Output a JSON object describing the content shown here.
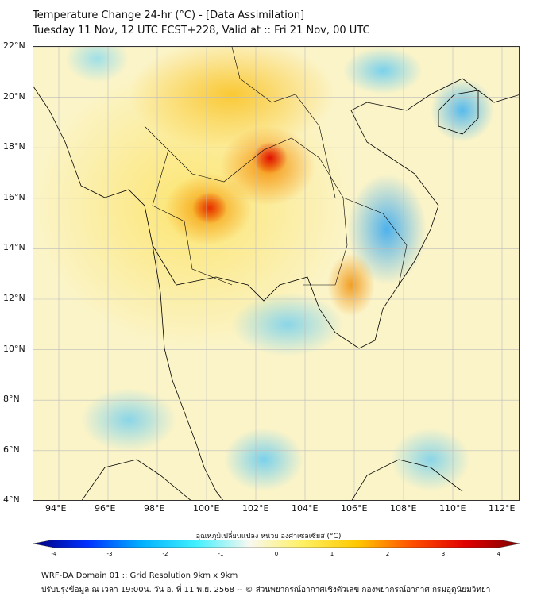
{
  "title": {
    "line1": "Temperature Change 24-hr (°C) - [Data Assimilation]",
    "line2": "Tuesday 11 Nov, 12 UTC FCST+228, Valid at :: Fri 21 Nov, 00 UTC"
  },
  "map": {
    "lat_labels": [
      "22°N",
      "20°N",
      "18°N",
      "16°N",
      "14°N",
      "12°N",
      "10°N",
      "8°N",
      "6°N",
      "4°N"
    ],
    "lon_labels": [
      "94°E",
      "96°E",
      "98°E",
      "100°E",
      "102°E",
      "104°E",
      "106°E",
      "108°E",
      "110°E",
      "112°E"
    ]
  },
  "colorbar": {
    "title": "อุณหภูมิเปลี่ยนแปลง หน่วย องศาเซลเซียส (°C)",
    "ticks": [
      "-4",
      "-3",
      "-2",
      "-1",
      "0",
      "1",
      "2",
      "3",
      "4"
    ],
    "colors": [
      "#00007f",
      "#0030ff",
      "#00b0ff",
      "#40f0ff",
      "#f8f8f0",
      "#fff060",
      "#ffc800",
      "#ff5000",
      "#e00000",
      "#7f0000"
    ]
  },
  "footer": {
    "line1": "WRF-DA Domain 01 :: Grid Resolution 9km x 9km",
    "line2": "ปรับปรุงข้อมูล ณ เวลา 19:00น. วัน อ. ที่ 11 พ.ย. 2568 -- © ส่วนพยากรณ์อากาศเชิงตัวเลข กองพยากรณ์อากาศ กรมอุตุนิยมวิทยา"
  }
}
